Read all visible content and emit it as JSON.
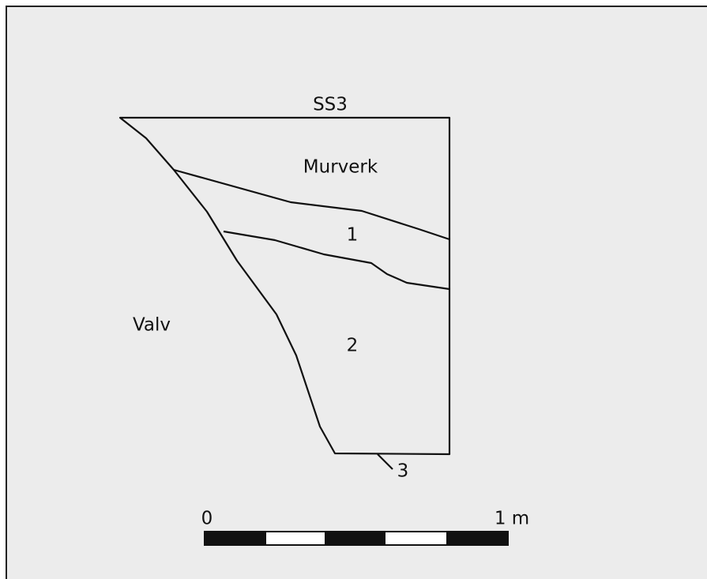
{
  "title": "SS3",
  "layers": [
    "Murverk",
    "1",
    "2",
    "3"
  ],
  "outside": "Valv",
  "scale": {
    "start": "0",
    "end": "1 m"
  }
}
